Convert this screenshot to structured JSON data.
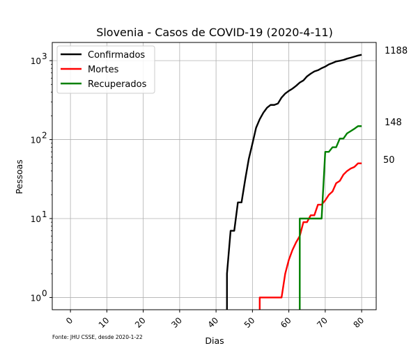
{
  "chart_data": {
    "type": "line",
    "title": "Slovenia - Casos de COVID-19 (2020-4-11)",
    "xlabel": "Dias",
    "ylabel": "Pessoas",
    "y_scale": "log",
    "xlim": [
      -5,
      84
    ],
    "ylim": [
      0.7,
      1700
    ],
    "x_ticks": [
      0,
      10,
      20,
      30,
      40,
      50,
      60,
      70,
      80
    ],
    "y_ticks": [
      {
        "value": 1,
        "base": "10",
        "exp": "0"
      },
      {
        "value": 10,
        "base": "10",
        "exp": "1"
      },
      {
        "value": 100,
        "base": "10",
        "exp": "2"
      },
      {
        "value": 1000,
        "base": "10",
        "exp": "3"
      }
    ],
    "grid": true,
    "legend_position": "top-left",
    "series": [
      {
        "name": "Confirmados",
        "color": "#000000",
        "x": [
          43,
          44,
          45,
          46,
          47,
          48,
          49,
          50,
          51,
          52,
          53,
          54,
          55,
          56,
          57,
          58,
          59,
          60,
          61,
          62,
          63,
          64,
          65,
          66,
          67,
          68,
          69,
          70,
          71,
          72,
          73,
          74,
          75,
          76,
          77,
          78,
          79,
          80
        ],
        "y": [
          2,
          7,
          7,
          16,
          16,
          31,
          57,
          89,
          141,
          181,
          219,
          253,
          275,
          275,
          286,
          341,
          383,
          414,
          442,
          480,
          528,
          562,
          632,
          684,
          730,
          756,
          802,
          841,
          897,
          934,
          977,
          997,
          1021,
          1059,
          1091,
          1124,
          1160,
          1188
        ]
      },
      {
        "name": "Mortes",
        "color": "#ff0000",
        "x": [
          52,
          53,
          54,
          55,
          56,
          57,
          58,
          59,
          60,
          61,
          62,
          63,
          64,
          65,
          66,
          67,
          68,
          69,
          70,
          71,
          72,
          73,
          74,
          75,
          76,
          77,
          78,
          79,
          80
        ],
        "y": [
          1,
          1,
          1,
          1,
          1,
          1,
          1,
          2,
          3,
          4,
          5,
          6,
          9,
          9,
          11,
          11,
          15,
          15,
          17,
          20,
          22,
          28,
          30,
          36,
          40,
          43,
          45,
          50,
          50
        ]
      },
      {
        "name": "Recuperados",
        "color": "#008000",
        "x": [
          63,
          64,
          65,
          66,
          67,
          68,
          69,
          70,
          71,
          72,
          73,
          74,
          75,
          76,
          77,
          78,
          79,
          80
        ],
        "y": [
          10,
          10,
          10,
          10,
          10,
          10,
          10,
          70,
          70,
          80,
          80,
          103,
          103,
          120,
          128,
          137,
          148,
          148
        ]
      }
    ],
    "end_labels": [
      "1188",
      "148",
      "50"
    ],
    "source_note": "Fonte: JHU CSSE, desde 2020-1-22"
  }
}
